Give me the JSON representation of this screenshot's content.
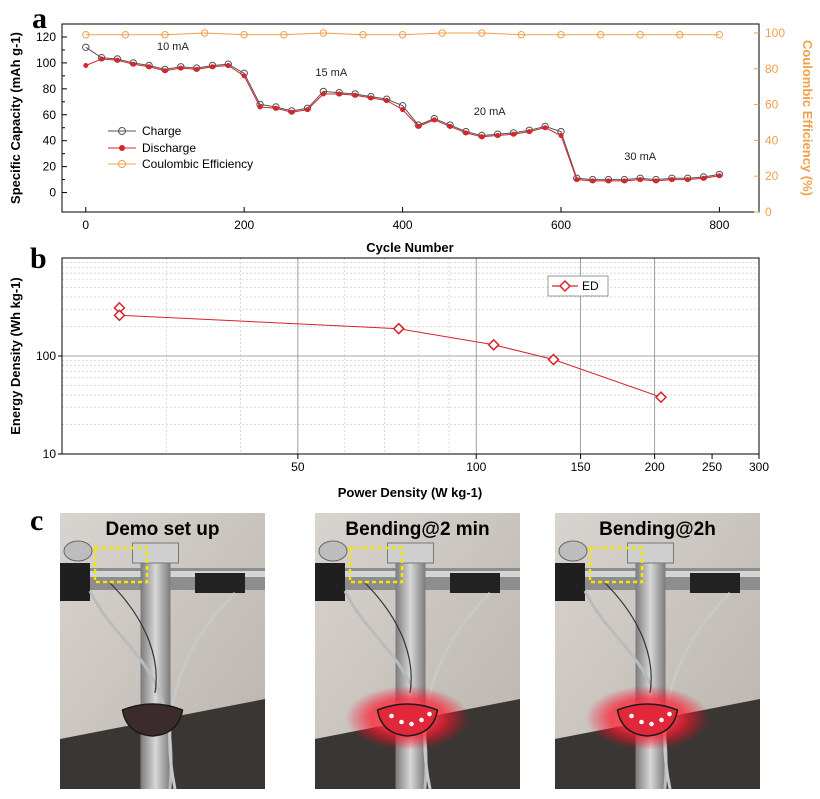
{
  "panels": {
    "a": "a",
    "b": "b",
    "c": "c"
  },
  "chart_data": [
    {
      "type": "scatter",
      "panel": "a",
      "xlabel": "Cycle Number",
      "ylabel": "Specific Capacity (mAh g-1)",
      "y2label": "Coulombic Efficiency (%)",
      "xlim": [
        -30,
        850
      ],
      "ylim": [
        -15,
        130
      ],
      "y2lim": [
        0,
        105
      ],
      "xticks": [
        0,
        200,
        400,
        600,
        800
      ],
      "yticks": [
        0,
        10,
        20,
        30,
        40,
        50,
        60,
        70,
        80,
        90,
        100,
        110,
        120
      ],
      "y2ticks": [
        0,
        20,
        40,
        60,
        80,
        100
      ],
      "legend_position": "center-left",
      "series": [
        {
          "name": "Charge",
          "color": "#555555",
          "axis": "left",
          "x": [
            0,
            20,
            40,
            60,
            80,
            100,
            120,
            140,
            160,
            180,
            200,
            220,
            240,
            260,
            280,
            300,
            320,
            340,
            360,
            380,
            400,
            420,
            440,
            460,
            480,
            500,
            520,
            540,
            560,
            580,
            600,
            620,
            640,
            660,
            680,
            700,
            720,
            740,
            760,
            780,
            800
          ],
          "y": [
            112,
            104,
            103,
            100,
            98,
            95,
            97,
            96,
            98,
            99,
            92,
            68,
            66,
            63,
            65,
            78,
            77,
            76,
            74,
            72,
            67,
            52,
            57,
            52,
            47,
            44,
            45,
            46,
            48,
            51,
            47,
            11,
            10,
            10,
            10,
            11,
            10,
            11,
            11,
            12,
            14
          ]
        },
        {
          "name": "Discharge",
          "color": "#d9232d",
          "axis": "left",
          "x": [
            0,
            20,
            40,
            60,
            80,
            100,
            120,
            140,
            160,
            180,
            200,
            220,
            240,
            260,
            280,
            300,
            320,
            340,
            360,
            380,
            400,
            420,
            440,
            460,
            480,
            500,
            520,
            540,
            560,
            580,
            600,
            620,
            640,
            660,
            680,
            700,
            720,
            740,
            760,
            780,
            800
          ],
          "y": [
            98,
            103,
            102,
            99,
            97,
            94,
            96,
            95,
            97,
            98,
            90,
            66,
            65,
            62,
            64,
            76,
            76,
            75,
            73,
            71,
            64,
            51,
            56,
            51,
            46,
            43,
            44,
            45,
            47,
            50,
            44,
            10,
            9,
            9,
            9,
            10,
            9,
            10,
            10,
            11,
            13
          ]
        },
        {
          "name": "Coulombic Efficiency",
          "color": "#f0a04b",
          "axis": "right",
          "x": [
            0,
            50,
            100,
            150,
            200,
            250,
            300,
            350,
            400,
            450,
            500,
            550,
            600,
            650,
            700,
            750,
            800
          ],
          "y": [
            99,
            99,
            99,
            100,
            99,
            99,
            100,
            99,
            99,
            100,
            100,
            99,
            99,
            99,
            99,
            99,
            99
          ]
        }
      ],
      "annotations": [
        {
          "text": "10 mA",
          "x": 110,
          "y": 110
        },
        {
          "text": "15 mA",
          "x": 310,
          "y": 90
        },
        {
          "text": "20 mA",
          "x": 510,
          "y": 60
        },
        {
          "text": "30 mA",
          "x": 700,
          "y": 25
        }
      ]
    },
    {
      "type": "line",
      "panel": "b",
      "xlabel": "Power Density (W kg-1)",
      "ylabel": "Energy Density (Wh kg-1)",
      "xscale": "log",
      "yscale": "log",
      "xlim": [
        20,
        300
      ],
      "ylim": [
        10,
        1000
      ],
      "xticks": [
        50,
        100,
        150,
        200,
        250,
        300
      ],
      "yticks": [
        10,
        100
      ],
      "grid": true,
      "legend_position": "top-right",
      "series": [
        {
          "name": "ED",
          "color": "#d9232d",
          "x": [
            25,
            25,
            74,
            107,
            135,
            205
          ],
          "y": [
            310,
            260,
            190,
            130,
            92,
            38
          ]
        }
      ]
    }
  ],
  "photos": [
    {
      "label": "Demo set up",
      "led_on": false
    },
    {
      "label": "Bending@2 min",
      "led_on": true
    },
    {
      "label": "Bending@2h",
      "led_on": true
    }
  ]
}
